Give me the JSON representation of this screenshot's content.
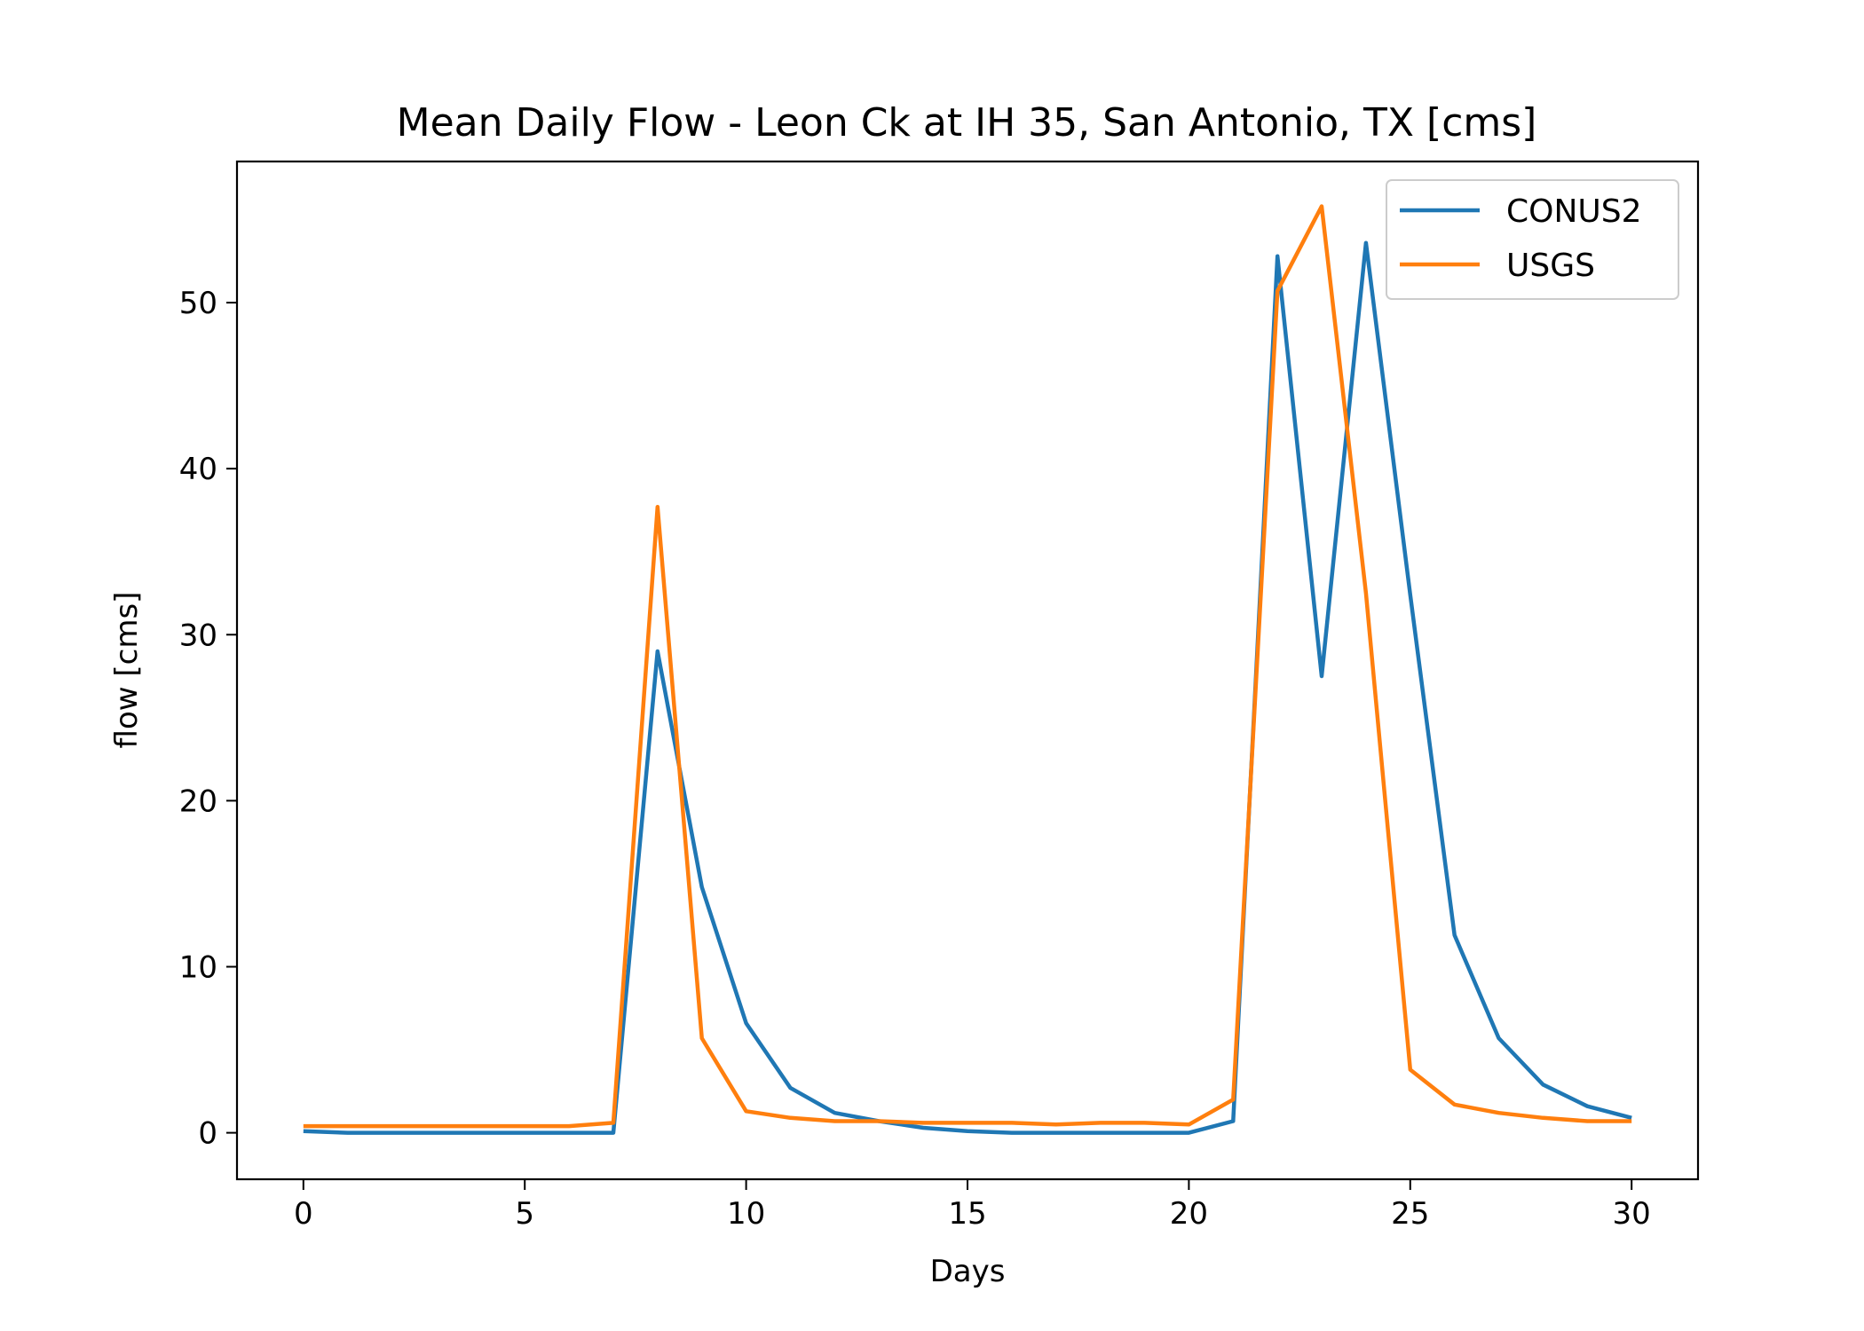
{
  "chart_data": {
    "type": "line",
    "title": "Mean Daily Flow - Leon Ck at IH 35, San Antonio, TX [cms]",
    "xlabel": "Days",
    "ylabel": "flow [cms]",
    "xlim": [
      -1.5,
      31.5
    ],
    "ylim": [
      -2.8,
      58.5
    ],
    "xticks": [
      0,
      5,
      10,
      15,
      20,
      25,
      30
    ],
    "yticks": [
      0,
      10,
      20,
      30,
      40,
      50
    ],
    "grid": false,
    "legend": "top-right",
    "x": [
      0,
      1,
      2,
      3,
      4,
      5,
      6,
      7,
      8,
      9,
      10,
      11,
      12,
      13,
      14,
      15,
      16,
      17,
      18,
      19,
      20,
      21,
      22,
      23,
      24,
      25,
      26,
      27,
      28,
      29,
      30
    ],
    "series": [
      {
        "name": "CONUS2",
        "color": "#1f77b4",
        "values": [
          0.1,
          0.0,
          0.0,
          0.0,
          0.0,
          0.0,
          0.0,
          0.0,
          29.0,
          14.8,
          6.6,
          2.7,
          1.2,
          0.7,
          0.3,
          0.1,
          0.0,
          0.0,
          0.0,
          0.0,
          0.0,
          0.7,
          52.8,
          27.5,
          53.6,
          32.4,
          11.9,
          5.7,
          2.9,
          1.6,
          0.9
        ]
      },
      {
        "name": "USGS",
        "color": "#ff7f0e",
        "values": [
          0.4,
          0.4,
          0.4,
          0.4,
          0.4,
          0.4,
          0.4,
          0.6,
          37.7,
          5.7,
          1.3,
          0.9,
          0.7,
          0.7,
          0.6,
          0.6,
          0.6,
          0.5,
          0.6,
          0.6,
          0.5,
          2.0,
          50.7,
          55.8,
          32.5,
          3.8,
          1.7,
          1.2,
          0.9,
          0.7,
          0.7
        ]
      }
    ]
  }
}
